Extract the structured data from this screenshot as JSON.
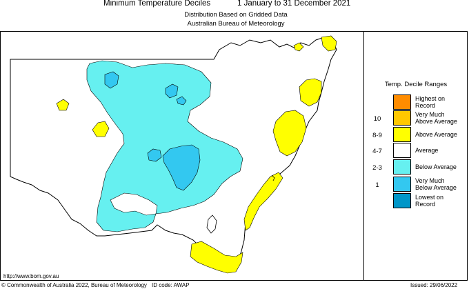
{
  "header": {
    "title": "Minimum Temperature Deciles",
    "period": "1 January to 31 December 2021",
    "subtitle_1": "Distribution Based on Gridded Data",
    "subtitle_2": "Australian Bureau of Meteorology"
  },
  "legend": {
    "title": "Temp. Decile Ranges",
    "entries": [
      {
        "range": "",
        "label": "Highest on\nRecord",
        "color": "#ff8c00"
      },
      {
        "range": "10",
        "label": "Very Much\nAbove Average",
        "color": "#ffc800"
      },
      {
        "range": "8-9",
        "label": "Above Average",
        "color": "#ffff00"
      },
      {
        "range": "4-7",
        "label": "Average",
        "color": "#ffffff"
      },
      {
        "range": "2-3",
        "label": "Below Average",
        "color": "#66f0f0"
      },
      {
        "range": "1",
        "label": "Very Much\nBelow Average",
        "color": "#33c8f0"
      },
      {
        "range": "",
        "label": "Lowest on\nRecord",
        "color": "#0096c8"
      }
    ]
  },
  "footer": {
    "url": "http://www.bom.gov.au",
    "copyright": "© Commonwealth of Australia 2022, Bureau of Meteorology",
    "id_code": "ID code: AWAP",
    "issued": "Issued: 29/06/2022"
  },
  "colors": {
    "above_average": "#ffff00",
    "below_average": "#66f0f0",
    "very_much_below_average": "#33c8f0",
    "average": "#ffffff",
    "outline": "#000000"
  }
}
